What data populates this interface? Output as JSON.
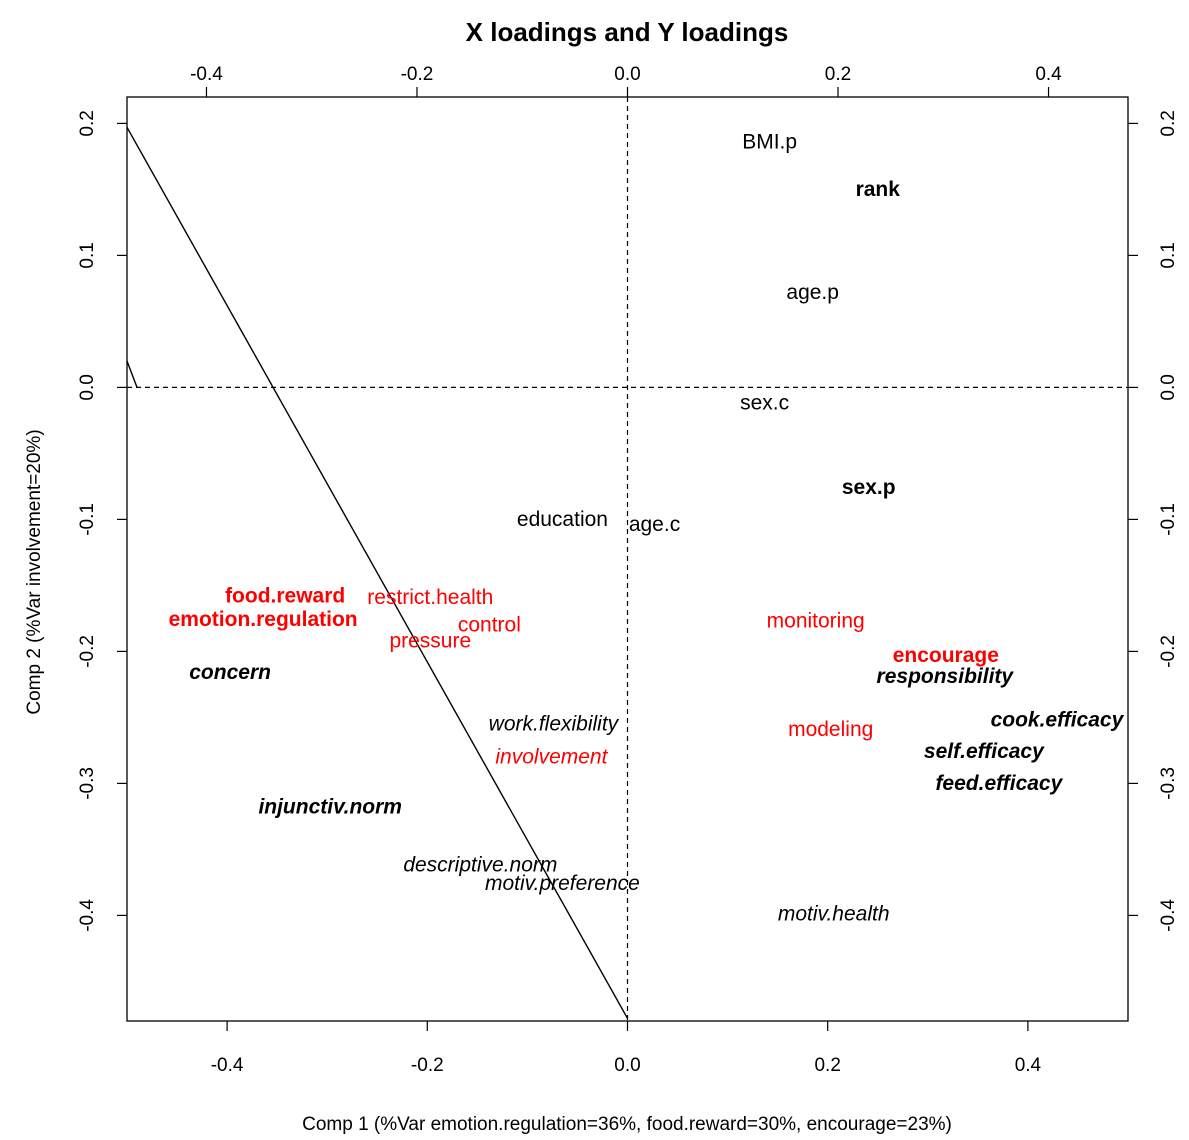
{
  "chart_data": {
    "type": "scatter",
    "title": "X loadings and Y loadings",
    "xlabel": "Comp 1 (%Var emotion.regulation=36%, food.reward=30%, encourage=23%)",
    "ylabel": "Comp 2 (%Var involvement=20%)",
    "xlim": [
      -0.5,
      0.5
    ],
    "ylim": [
      -0.48,
      0.22
    ],
    "top_xlim": [
      -0.4755,
      0.4755
    ],
    "bottom_ticks": [
      -0.4,
      -0.2,
      0.0,
      0.2,
      0.4
    ],
    "bottom_tick_labels": [
      "-0.4",
      "-0.2",
      "0.0",
      "0.2",
      "0.4"
    ],
    "top_ticks": [
      -0.4,
      -0.2,
      0.0,
      0.2,
      0.4
    ],
    "top_tick_labels": [
      "-0.4",
      "-0.2",
      "0.0",
      "0.2",
      "0.4"
    ],
    "y_ticks": [
      -0.4,
      -0.3,
      -0.2,
      -0.1,
      0.0,
      0.1,
      0.2
    ],
    "y_tick_labels": [
      "-0.4",
      "-0.3",
      "-0.2",
      "-0.1",
      "0.0",
      "0.1",
      "0.2"
    ],
    "reference_lines": {
      "x": 0.0,
      "y": 0.0,
      "style": "dashed"
    },
    "colors": {
      "black": "#000000",
      "red": "#ff0000"
    },
    "points": [
      {
        "label": "BMI.p",
        "x": 0.142,
        "y": 0.186,
        "color": "black",
        "weight": "normal",
        "style": "normal"
      },
      {
        "label": "rank",
        "x": 0.25,
        "y": 0.15,
        "color": "black",
        "weight": "bold",
        "style": "normal"
      },
      {
        "label": "age.p",
        "x": 0.185,
        "y": 0.072,
        "color": "black",
        "weight": "normal",
        "style": "normal"
      },
      {
        "label": "sex.c",
        "x": 0.137,
        "y": -0.012,
        "color": "black",
        "weight": "normal",
        "style": "normal"
      },
      {
        "label": "sex.p",
        "x": 0.241,
        "y": -0.076,
        "color": "black",
        "weight": "bold",
        "style": "normal"
      },
      {
        "label": "education",
        "x": -0.065,
        "y": -0.1,
        "color": "black",
        "weight": "normal",
        "style": "normal"
      },
      {
        "label": "age.c",
        "x": 0.027,
        "y": -0.104,
        "color": "black",
        "weight": "normal",
        "style": "normal"
      },
      {
        "label": "food.reward",
        "x": -0.342,
        "y": -0.158,
        "color": "red",
        "weight": "bold",
        "style": "normal"
      },
      {
        "label": "restrict.health",
        "x": -0.197,
        "y": -0.159,
        "color": "red",
        "weight": "normal",
        "style": "normal"
      },
      {
        "label": "emotion.regulation",
        "x": -0.364,
        "y": -0.176,
        "color": "red",
        "weight": "bold",
        "style": "normal"
      },
      {
        "label": "control",
        "x": -0.138,
        "y": -0.18,
        "color": "red",
        "weight": "normal",
        "style": "normal"
      },
      {
        "label": "pressure",
        "x": -0.197,
        "y": -0.192,
        "color": "red",
        "weight": "normal",
        "style": "normal"
      },
      {
        "label": "monitoring",
        "x": 0.188,
        "y": -0.177,
        "color": "red",
        "weight": "normal",
        "style": "normal"
      },
      {
        "label": "encourage",
        "x": 0.318,
        "y": -0.203,
        "color": "red",
        "weight": "bold",
        "style": "normal"
      },
      {
        "label": "responsibility",
        "x": 0.317,
        "y": -0.219,
        "color": "black",
        "weight": "bold",
        "style": "italic"
      },
      {
        "label": "concern",
        "x": -0.397,
        "y": -0.216,
        "color": "black",
        "weight": "bold",
        "style": "italic"
      },
      {
        "label": "work.flexibility",
        "x": -0.074,
        "y": -0.255,
        "color": "black",
        "weight": "normal",
        "style": "italic"
      },
      {
        "label": "modeling",
        "x": 0.203,
        "y": -0.259,
        "color": "red",
        "weight": "normal",
        "style": "normal"
      },
      {
        "label": "cook.efficacy",
        "x": 0.429,
        "y": -0.252,
        "color": "black",
        "weight": "bold",
        "style": "italic"
      },
      {
        "label": "involvement",
        "x": -0.076,
        "y": -0.28,
        "color": "red",
        "weight": "normal",
        "style": "italic"
      },
      {
        "label": "self.efficacy",
        "x": 0.356,
        "y": -0.276,
        "color": "black",
        "weight": "bold",
        "style": "italic"
      },
      {
        "label": "feed.efficacy",
        "x": 0.371,
        "y": -0.3,
        "color": "black",
        "weight": "bold",
        "style": "italic"
      },
      {
        "label": "injunctiv.norm",
        "x": -0.297,
        "y": -0.318,
        "color": "black",
        "weight": "bold",
        "style": "italic"
      },
      {
        "label": "descriptive.norm",
        "x": -0.147,
        "y": -0.362,
        "color": "black",
        "weight": "normal",
        "style": "italic"
      },
      {
        "label": "motiv.preference",
        "x": -0.065,
        "y": -0.376,
        "color": "black",
        "weight": "normal",
        "style": "italic"
      },
      {
        "label": "motiv.health",
        "x": 0.206,
        "y": -0.399,
        "color": "black",
        "weight": "normal",
        "style": "italic"
      }
    ],
    "lines": [
      {
        "from": [
          -0.5,
          0.197
        ],
        "to": [
          0.0,
          -0.478
        ]
      },
      {
        "from": [
          -0.5,
          0.02
        ],
        "to": [
          -0.49,
          0.0
        ]
      }
    ]
  }
}
